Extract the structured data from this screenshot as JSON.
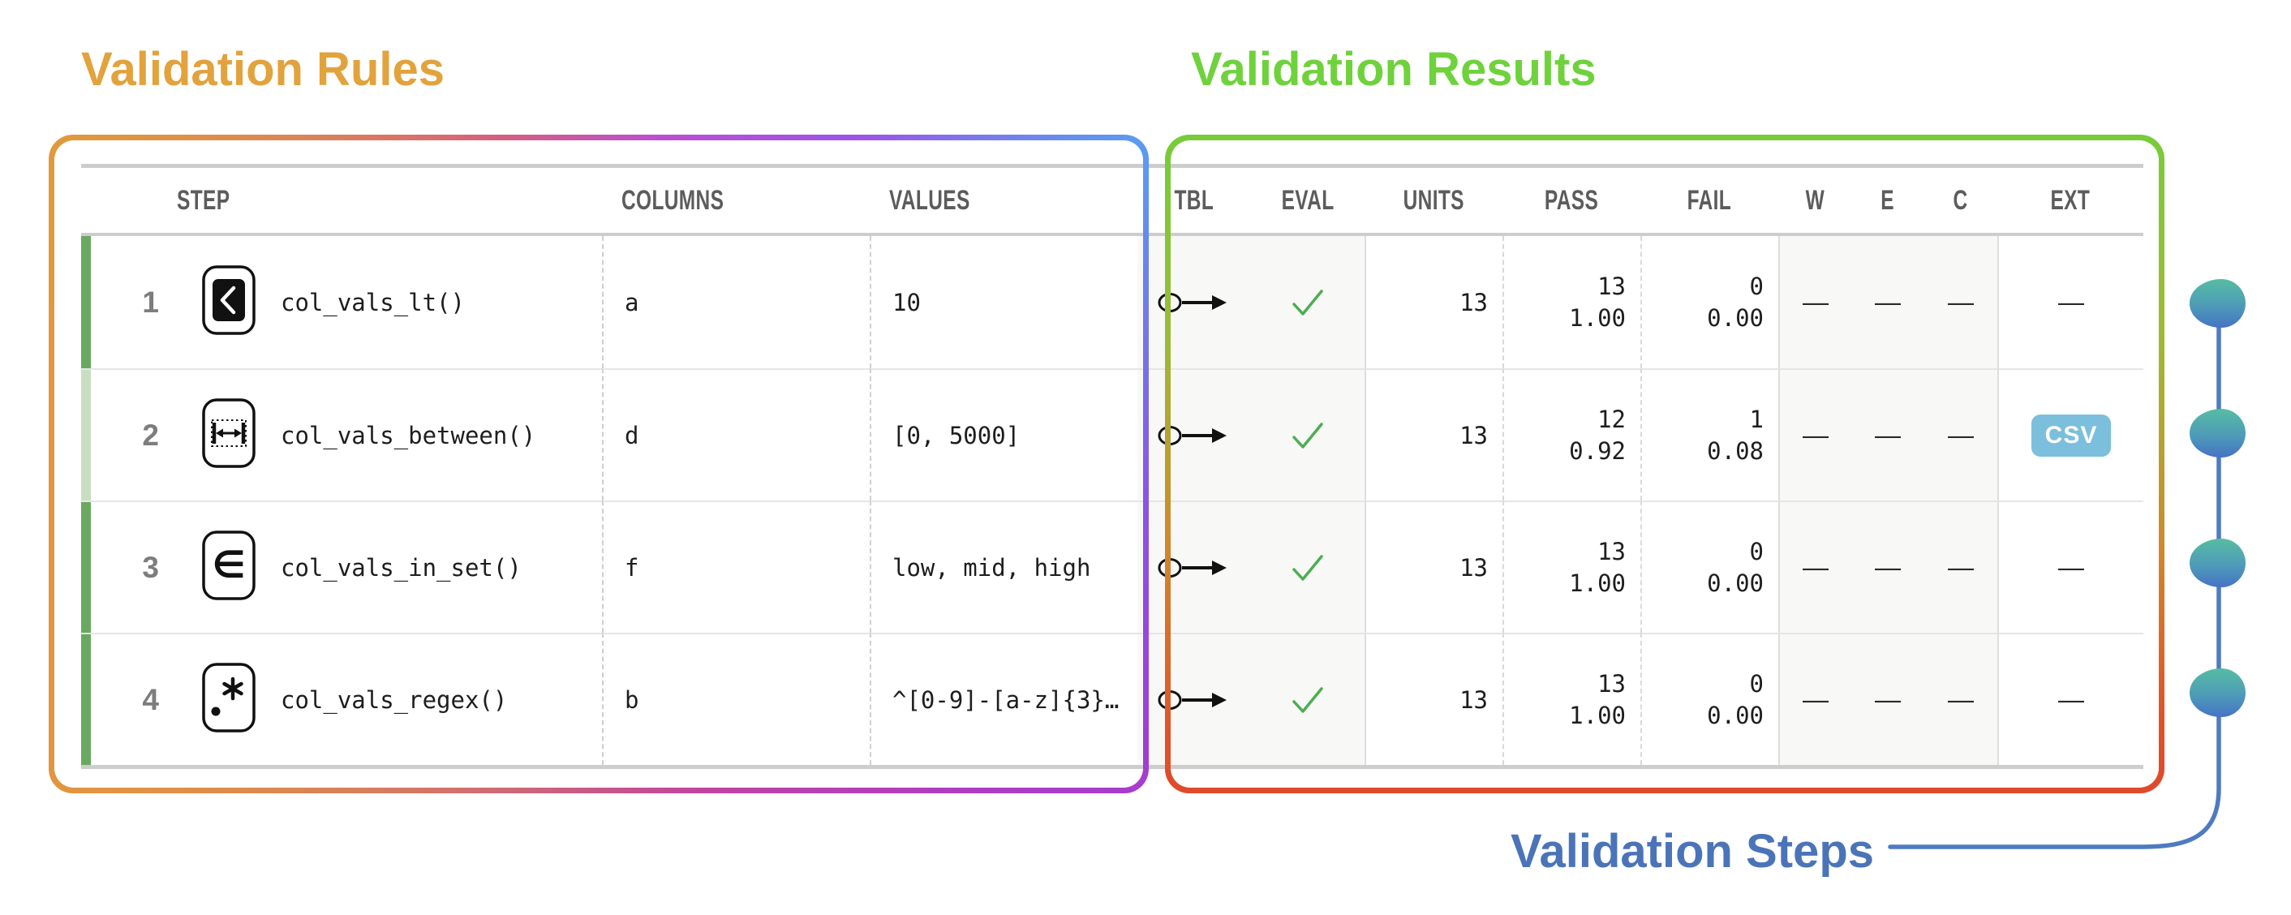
{
  "titles": {
    "rules": "Validation Rules",
    "results": "Validation Results",
    "steps": "Validation Steps"
  },
  "colors": {
    "rules_title": "#e2a23c",
    "results_title": "#6fd23c",
    "steps_title": "#4b74b8",
    "strip_full": "#69a95f",
    "strip_partial": "#c8dec1",
    "csv_badge": "#7cbfdc",
    "eval_check": "#4cae50",
    "marker_top": "#56bda2",
    "marker_bottom": "#4573c4"
  },
  "header": {
    "step": "STEP",
    "columns": "COLUMNS",
    "values": "VALUES",
    "tbl": "TBL",
    "eval": "EVAL",
    "units": "UNITS",
    "pass": "PASS",
    "fail": "FAIL",
    "w": "W",
    "e": "E",
    "c": "C",
    "ext": "EXT"
  },
  "rows": [
    {
      "step": "1",
      "icon": "lt-icon",
      "fn": "col_vals_lt()",
      "columns": "a",
      "values": "10",
      "units": "13",
      "pass_n": "13",
      "pass_f": "1.00",
      "fail_n": "0",
      "fail_f": "0.00",
      "w": "—",
      "e": "—",
      "c": "—",
      "ext": "—",
      "strip": "full"
    },
    {
      "step": "2",
      "icon": "between-icon",
      "fn": "col_vals_between()",
      "columns": "d",
      "values": "[0, 5000]",
      "units": "13",
      "pass_n": "12",
      "pass_f": "0.92",
      "fail_n": "1",
      "fail_f": "0.08",
      "w": "—",
      "e": "—",
      "c": "—",
      "ext": "CSV",
      "strip": "partial"
    },
    {
      "step": "3",
      "icon": "in-set-icon",
      "fn": "col_vals_in_set()",
      "columns": "f",
      "values": "low, mid, high",
      "units": "13",
      "pass_n": "13",
      "pass_f": "1.00",
      "fail_n": "0",
      "fail_f": "0.00",
      "w": "—",
      "e": "—",
      "c": "—",
      "ext": "—",
      "strip": "full"
    },
    {
      "step": "4",
      "icon": "regex-icon",
      "fn": "col_vals_regex()",
      "columns": "b",
      "values": "^[0-9]-[a-z]{3}…",
      "units": "13",
      "pass_n": "13",
      "pass_f": "1.00",
      "fail_n": "0",
      "fail_f": "0.00",
      "w": "—",
      "e": "—",
      "c": "—",
      "ext": "—",
      "strip": "full"
    }
  ]
}
